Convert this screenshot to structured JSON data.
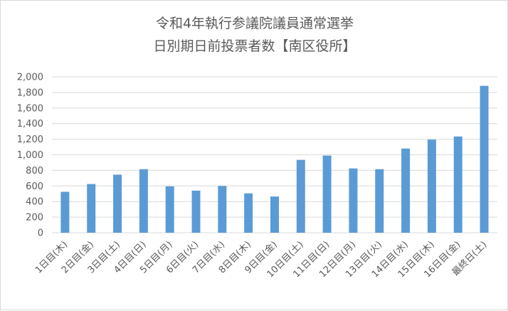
{
  "chart_data": {
    "type": "bar",
    "title": [
      "令和4年執行参議院議員通常選挙",
      "日別期日前投票者数【南区役所】"
    ],
    "categories": [
      "1日目(木)",
      "2日目(金)",
      "3日目(土)",
      "4日目(日)",
      "5日目(月)",
      "6日目(火)",
      "7日目(水)",
      "8日目(木)",
      "9日目(金)",
      "10日目(土)",
      "11日目(日)",
      "12日目(月)",
      "13日目(火)",
      "14日目(水)",
      "15日目(木)",
      "16日目(金)",
      "最終日(土)"
    ],
    "values": [
      525,
      625,
      745,
      815,
      595,
      540,
      600,
      505,
      465,
      935,
      990,
      825,
      815,
      1080,
      1195,
      1235,
      1885
    ],
    "ylim": [
      0,
      2000
    ],
    "yticks": [
      "0",
      "200",
      "400",
      "600",
      "800",
      "1,000",
      "1,200",
      "1,400",
      "1,600",
      "1,800",
      "2,000"
    ],
    "grid": true,
    "legend": "none",
    "colors": {
      "bar": "#5b9bd5",
      "grid": "#d9d9d9",
      "text": "#595959"
    }
  }
}
